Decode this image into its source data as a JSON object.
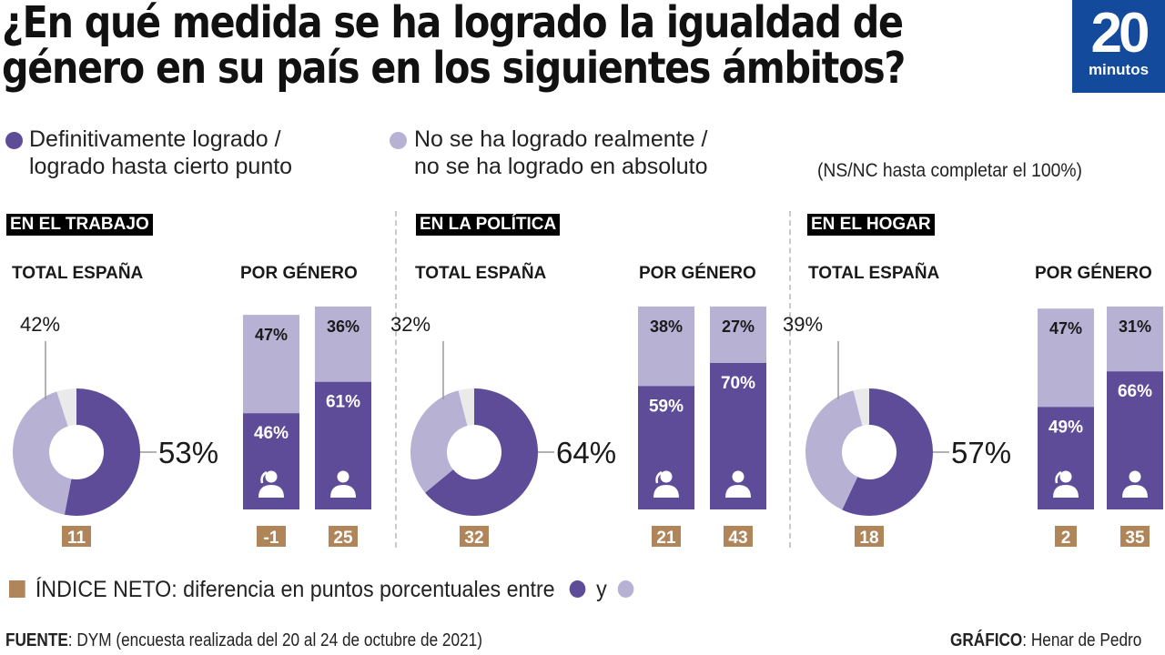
{
  "header": {
    "title_line1": "¿En qué medida se ha logrado la igualdad de",
    "title_line2": "género en su país en los siguientes ámbitos?",
    "logo_number": "20",
    "logo_word": "minutos"
  },
  "legend": {
    "achieved_line1": "Definitivamente logrado /",
    "achieved_line2": "logrado hasta cierto punto",
    "not_achieved_line1": "No se ha logrado realmente /",
    "not_achieved_line2": "no se ha logrado en absoluto",
    "nsnc_note": "(NS/NC hasta completar el 100%)"
  },
  "colors": {
    "achieved": "#5f4c99",
    "not_achieved": "#b7b2d4",
    "nsnc": "#eaeaea",
    "index_box": "#b0855a",
    "logo_bg": "#134a9c"
  },
  "labels": {
    "total": "TOTAL ESPAÑA",
    "by_gender": "POR GÉNERO"
  },
  "chart_data": [
    {
      "type": "pie",
      "section": "EN EL TRABAJO",
      "total": {
        "achieved": 53,
        "not_achieved": 42,
        "achieved_label": "53%",
        "not_achieved_label": "42%",
        "net_index": "11"
      },
      "by_gender": [
        {
          "gender": "mujeres",
          "achieved": 46,
          "not_achieved": 47,
          "achieved_label": "46%",
          "not_achieved_label": "47%",
          "net_index": "-1"
        },
        {
          "gender": "hombres",
          "achieved": 61,
          "not_achieved": 36,
          "achieved_label": "61%",
          "not_achieved_label": "36%",
          "net_index": "25"
        }
      ]
    },
    {
      "type": "pie",
      "section": "EN LA POLÍTICA",
      "total": {
        "achieved": 64,
        "not_achieved": 32,
        "achieved_label": "64%",
        "not_achieved_label": "32%",
        "net_index": "32"
      },
      "by_gender": [
        {
          "gender": "mujeres",
          "achieved": 59,
          "not_achieved": 38,
          "achieved_label": "59%",
          "not_achieved_label": "38%",
          "net_index": "21"
        },
        {
          "gender": "hombres",
          "achieved": 70,
          "not_achieved": 27,
          "achieved_label": "70%",
          "not_achieved_label": "27%",
          "net_index": "43"
        }
      ]
    },
    {
      "type": "pie",
      "section": "EN EL HOGAR",
      "total": {
        "achieved": 57,
        "not_achieved": 39,
        "achieved_label": "57%",
        "not_achieved_label": "39%",
        "net_index": "18"
      },
      "by_gender": [
        {
          "gender": "mujeres",
          "achieved": 49,
          "not_achieved": 47,
          "achieved_label": "49%",
          "not_achieved_label": "47%",
          "net_index": "2"
        },
        {
          "gender": "hombres",
          "achieved": 66,
          "not_achieved": 31,
          "achieved_label": "66%",
          "not_achieved_label": "31%",
          "net_index": "35"
        }
      ]
    }
  ],
  "index_legend": {
    "text": "ÍNDICE NETO: diferencia en puntos porcentuales entre",
    "conjunction": "y"
  },
  "footer": {
    "source_label": "FUENTE",
    "source_text": ": DYM (encuesta realizada del 20 al 24 de octubre de 2021)",
    "credit_label": "GRÁFICO",
    "credit_text": ": Henar de Pedro"
  }
}
